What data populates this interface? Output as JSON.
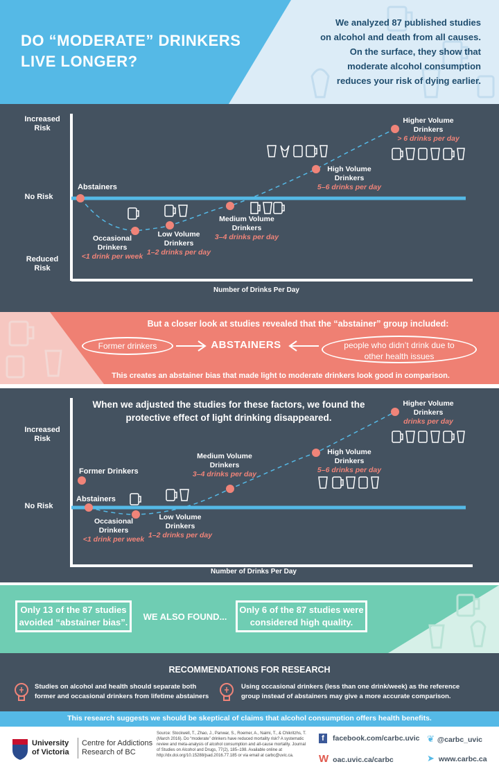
{
  "colors": {
    "sky": "#55b9e6",
    "slate": "#445260",
    "coral": "#ef8073",
    "mint": "#6fcdb3",
    "dot": "#f08479",
    "line": "#55b9e6"
  },
  "header": {
    "title_line1": "DO “MODERATE” DRINKERS",
    "title_line2": "LIVE LONGER?",
    "intro": [
      "We analyzed 87 published studies",
      "on alcohol and death from all causes.",
      "On the surface, they show that",
      "moderate alcohol consumption",
      "reduces your risk of dying earlier."
    ]
  },
  "chart1": {
    "y_increased": "Increased",
    "y_increased2": "Risk",
    "y_norisk": "No Risk",
    "y_reduced": "Reduced",
    "y_reduced2": "Risk",
    "x_label": "Number of Drinks Per Day",
    "abstainers": "Abstainers",
    "occ1": "Occasional",
    "occ2": "Drinkers",
    "occ3": "<1 drink per week",
    "low1": "Low Volume",
    "low2": "Drinkers",
    "low3": "1–2 drinks per day",
    "med1": "Medium Volume",
    "med2": "Drinkers",
    "med3": "3–4 drinks per day",
    "high1": "High Volume",
    "high2": "Drinkers",
    "high3": "5–6 drinks per day",
    "hv1": "Higher Volume",
    "hv2": "Drinkers",
    "hv3": "> 6 drinks per day"
  },
  "bias": {
    "heading": "But a closer look at studies revealed that the “abstainer” group included:",
    "former": "Former drinkers",
    "center": "ABSTAINERS",
    "health1": "people who didn’t drink due to",
    "health2": "other health issues",
    "footer": "This creates an abstainer bias that made light to moderate drinkers look good in comparison."
  },
  "chart2": {
    "heading1": "When we adjusted the studies for these factors, we found the",
    "heading2": "protective effect of light drinking disappeared.",
    "y_increased": "Increased",
    "y_increased2": "Risk",
    "y_norisk": "No Risk",
    "x_label": "Number of Drinks Per Day",
    "former": "Former Drinkers",
    "abstainers": "Abstainers",
    "occ1": "Occasional",
    "occ2": "Drinkers",
    "occ3": "<1 drink per week",
    "low1": "Low Volume",
    "low2": "Drinkers",
    "low3": "1–2 drinks per day",
    "med1": "Medium Volume",
    "med2": "Drinkers",
    "med3": "3–4 drinks per day",
    "high1": "High Volume",
    "high2": "Drinkers",
    "high3": "5–6 drinks per day",
    "hv1": "Higher Volume",
    "hv2": "Drinkers",
    "hv3": "drinks per day"
  },
  "found": {
    "box1a": "Only 13 of the 87 studies",
    "box1b": "avoided “abstainer bias”.",
    "middle": "WE ALSO FOUND...",
    "box2a": "Only 6 of the 87 studies were",
    "box2b": "considered high quality."
  },
  "recs": {
    "heading": "RECOMMENDATIONS FOR RESEARCH",
    "rec1a": "Studies on alcohol and health should separate both",
    "rec1b": "former and occasional drinkers from lifetime abstainers",
    "rec2a": "Using occasional drinkers (less than one drink/week) as the reference",
    "rec2b": "group instead of abstainers may give a more accurate comparison.",
    "conclusion": "This research suggests we should be skeptical of claims that alcohol consumption offers health benefits."
  },
  "footer": {
    "univ1": "University",
    "univ2": "of Victoria",
    "centre1": "Centre for Addictions",
    "centre2": "Research of BC",
    "source": "Source: Stockwell, T., Zhao, J., Panwar, S., Roemer, A., Naimi, T., & Chikritzhs, T. (March 2016). Do “moderate” drinkers have reduced mortality risk? A systematic review and meta-analysis of alcohol consumption and all-cause mortality. Journal of Studies on Alcohol and Drugs, 77(2), 185–198. Available online at http://dx.doi.org/10.15288/jsad.2016.77.185 or via email at carbc@uvic.ca.",
    "facebook": "facebook.com/carbc.uvic",
    "twitter": "@carbc_uvic",
    "oac": "oac.uvic.ca/carbc",
    "web": "www.carbc.ca"
  }
}
